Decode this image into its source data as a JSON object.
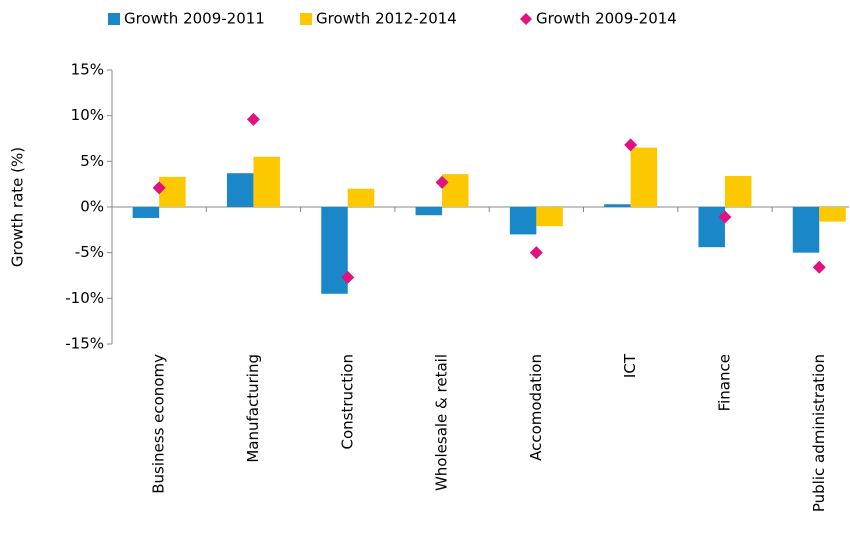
{
  "chart_data": {
    "type": "bar",
    "y_label": "Growth rate (%)",
    "categories": [
      "Business economy",
      "Manufacturing",
      "Construction",
      "Wholesale & retail",
      "Accomodation",
      "ICT",
      "Finance",
      "Public administration"
    ],
    "series": [
      {
        "name": "Growth 2009-2011",
        "color": "#1a87c9",
        "type": "bar",
        "values": [
          -1.2,
          3.7,
          -9.5,
          -0.9,
          -3.0,
          0.3,
          -4.4,
          -5.0
        ]
      },
      {
        "name": "Growth 2012-2014",
        "color": "#fcc800",
        "type": "bar",
        "values": [
          3.3,
          5.5,
          2.0,
          3.6,
          -2.1,
          6.5,
          3.4,
          -1.6
        ]
      },
      {
        "name": "Growth 2009-2014",
        "color": "#e0127f",
        "type": "scatter",
        "values": [
          2.1,
          9.6,
          -7.7,
          2.7,
          -5.0,
          6.8,
          -1.1,
          -6.6
        ]
      }
    ],
    "ylim": [
      -15,
      15
    ],
    "yticks": [
      {
        "value": -15,
        "label": "-15%"
      },
      {
        "value": -10,
        "label": "-10%"
      },
      {
        "value": -5,
        "label": "-5%"
      },
      {
        "value": 0,
        "label": "0%"
      },
      {
        "value": 5,
        "label": "5%"
      },
      {
        "value": 10,
        "label": "10%"
      },
      {
        "value": 15,
        "label": "15%"
      }
    ],
    "legend": "top"
  }
}
